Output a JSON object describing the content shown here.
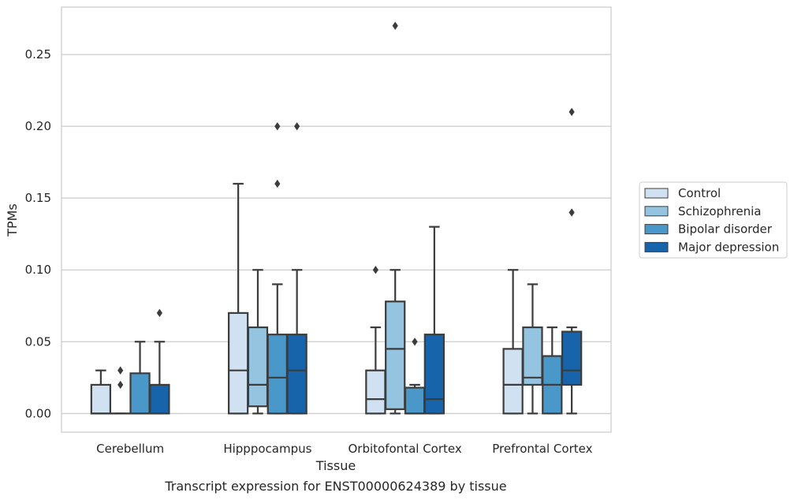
{
  "chart_data": {
    "type": "boxplot",
    "caption": "Transcript expression for ENST00000624389 by tissue",
    "xlabel": "Tissue",
    "ylabel": "TPMs",
    "ylim": [
      -0.013,
      0.283
    ],
    "yticks": [
      "0.00",
      "0.05",
      "0.10",
      "0.15",
      "0.20",
      "0.25"
    ],
    "ytick_values": [
      0.0,
      0.05,
      0.1,
      0.15,
      0.2,
      0.25
    ],
    "grid": true,
    "legend_position": "right",
    "categories": [
      "Cerebellum",
      "Hipppocampus",
      "Orbitofontal Cortex",
      "Prefrontal Cortex"
    ],
    "series": [
      {
        "name": "Control",
        "color": "#d0e1f2",
        "boxes": [
          {
            "whislo": 0.0,
            "q1": 0.0,
            "med": 0.0,
            "q3": 0.02,
            "whishi": 0.03,
            "fliers": []
          },
          {
            "whislo": 0.0,
            "q1": 0.0,
            "med": 0.03,
            "q3": 0.07,
            "whishi": 0.16,
            "fliers": []
          },
          {
            "whislo": 0.0,
            "q1": 0.0,
            "med": 0.01,
            "q3": 0.03,
            "whishi": 0.06,
            "fliers": [
              0.1
            ]
          },
          {
            "whislo": 0.0,
            "q1": 0.0,
            "med": 0.02,
            "q3": 0.045,
            "whishi": 0.1,
            "fliers": []
          }
        ]
      },
      {
        "name": "Schizophrenia",
        "color": "#94c4df",
        "boxes": [
          {
            "whislo": 0.0,
            "q1": 0.0,
            "med": 0.0,
            "q3": 0.0,
            "whishi": 0.0,
            "fliers": [
              0.02,
              0.03
            ]
          },
          {
            "whislo": 0.0,
            "q1": 0.005,
            "med": 0.02,
            "q3": 0.06,
            "whishi": 0.1,
            "fliers": []
          },
          {
            "whislo": 0.0,
            "q1": 0.003,
            "med": 0.045,
            "q3": 0.078,
            "whishi": 0.1,
            "fliers": [
              0.27
            ]
          },
          {
            "whislo": 0.0,
            "q1": 0.02,
            "med": 0.025,
            "q3": 0.06,
            "whishi": 0.09,
            "fliers": []
          }
        ]
      },
      {
        "name": "Bipolar disorder",
        "color": "#4a98c9",
        "boxes": [
          {
            "whislo": 0.0,
            "q1": 0.0,
            "med": 0.0,
            "q3": 0.028,
            "whishi": 0.05,
            "fliers": []
          },
          {
            "whislo": 0.0,
            "q1": 0.0,
            "med": 0.025,
            "q3": 0.055,
            "whishi": 0.09,
            "fliers": [
              0.16,
              0.2
            ]
          },
          {
            "whislo": 0.0,
            "q1": 0.0,
            "med": 0.0,
            "q3": 0.018,
            "whishi": 0.02,
            "fliers": [
              0.05
            ]
          },
          {
            "whislo": 0.0,
            "q1": 0.0,
            "med": 0.02,
            "q3": 0.04,
            "whishi": 0.06,
            "fliers": []
          }
        ]
      },
      {
        "name": "Major depression",
        "color": "#1764ab",
        "boxes": [
          {
            "whislo": 0.0,
            "q1": 0.0,
            "med": 0.0,
            "q3": 0.02,
            "whishi": 0.05,
            "fliers": [
              0.07
            ]
          },
          {
            "whislo": 0.0,
            "q1": 0.0,
            "med": 0.03,
            "q3": 0.055,
            "whishi": 0.1,
            "fliers": [
              0.2
            ]
          },
          {
            "whislo": 0.0,
            "q1": 0.0,
            "med": 0.01,
            "q3": 0.055,
            "whishi": 0.13,
            "fliers": []
          },
          {
            "whislo": 0.0,
            "q1": 0.02,
            "med": 0.03,
            "q3": 0.057,
            "whishi": 0.06,
            "fliers": [
              0.14,
              0.21
            ]
          }
        ]
      }
    ]
  }
}
